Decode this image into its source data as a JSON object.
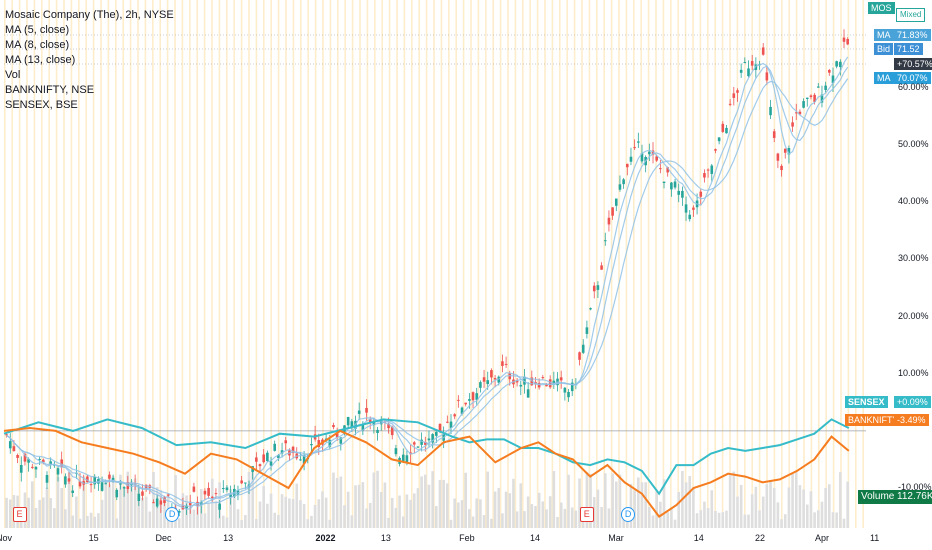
{
  "legend": {
    "symbol": "Mosaic Company (The), 2h, NYSE",
    "ma1": "MA (5, close)",
    "ma2": "MA (8, close)",
    "ma3": "MA (13, close)",
    "vol": "Vol",
    "comp1": "BANKNIFTY, NSE",
    "comp2": "SENSEX, BSE"
  },
  "scale_tags": {
    "symbol_badge": "MOS",
    "mode": "Mixed",
    "ma_label": "MA",
    "ma_a_value": "71.83%",
    "bid_label": "Bid",
    "bid_value": "71.52",
    "last_change": "+70.57%",
    "ma_c_value": "70.07%",
    "sensex_label": "SENSEX",
    "sensex_value": "+0.09%",
    "banknifty_label": "BANKNIFTY",
    "banknifty_value": "-3.49%",
    "volume_label": "Volume",
    "volume_value": "112.76K"
  },
  "colors": {
    "up": "#26a69a",
    "down": "#ef5350",
    "ma": "#90c2e6",
    "sensex": "#36bcc8",
    "banknifty": "#f57c1f",
    "session_band": "#fde5b4",
    "volume": "#dedede"
  },
  "chart_data": {
    "type": "line",
    "y_axis_ticks": [
      "60.00%",
      "50.00%",
      "40.00%",
      "30.00%",
      "20.00%",
      "10.00%",
      "-10.00%"
    ],
    "x_axis_ticks": [
      {
        "label": "Nov",
        "bold": false
      },
      {
        "label": "15",
        "bold": false
      },
      {
        "label": "Dec",
        "bold": false
      },
      {
        "label": "13",
        "bold": false
      },
      {
        "label": "2022",
        "bold": true
      },
      {
        "label": "13",
        "bold": false
      },
      {
        "label": "Feb",
        "bold": false
      },
      {
        "label": "14",
        "bold": false
      },
      {
        "label": "Mar",
        "bold": false
      },
      {
        "label": "14",
        "bold": false
      },
      {
        "label": "22",
        "bold": false
      },
      {
        "label": "Apr",
        "bold": false
      },
      {
        "label": "11",
        "bold": false
      }
    ],
    "ylim": [
      -17,
      74
    ],
    "x_range": [
      0,
      100
    ],
    "tick_x": [
      0,
      10.4,
      18.5,
      26,
      37.3,
      44.3,
      53.7,
      61.6,
      71,
      80.6,
      87.7,
      94.9,
      101
    ],
    "events": [
      {
        "x": 1.8,
        "kind": "E"
      },
      {
        "x": 19.5,
        "kind": "D"
      },
      {
        "x": 67.6,
        "kind": "E"
      },
      {
        "x": 72.4,
        "kind": "D"
      }
    ],
    "series": [
      {
        "name": "MOS",
        "x": [
          0,
          2,
          4,
          6,
          8,
          10,
          12,
          14,
          16,
          18,
          20,
          22,
          24,
          26,
          28,
          30,
          32,
          34,
          36,
          38,
          40,
          42,
          44,
          46,
          48,
          50,
          52,
          54,
          56,
          58,
          60,
          62,
          64,
          66,
          68,
          70,
          72,
          74,
          76,
          78,
          80,
          82,
          84,
          86,
          88,
          90,
          92,
          94,
          96,
          98
        ],
        "values": [
          0,
          -5,
          -6,
          -7,
          -9,
          -8,
          -8,
          -10,
          -11,
          -12,
          -13,
          -12,
          -12,
          -11,
          -9,
          -5,
          -3,
          -4,
          -3,
          -1,
          1,
          3,
          1,
          -4,
          -2,
          -2,
          3,
          6,
          8,
          11,
          8,
          9,
          8,
          7,
          20,
          34,
          46,
          50,
          46,
          42,
          38,
          46,
          55,
          64,
          66,
          44,
          56,
          58,
          63,
          68
        ]
      },
      {
        "name": "SENSEX",
        "x": [
          0,
          4,
          8,
          12,
          16,
          20,
          24,
          28,
          32,
          36,
          40,
          44,
          48,
          52,
          54,
          56,
          58,
          60,
          62,
          64,
          66,
          68,
          70,
          72,
          74,
          76,
          78,
          80,
          82,
          84,
          86,
          88,
          90,
          92,
          94,
          96,
          98
        ],
        "values": [
          -0.5,
          1.5,
          0,
          2,
          0.5,
          -2.5,
          -2,
          -3,
          -0.5,
          -1,
          0.5,
          2,
          1.5,
          -1,
          -2,
          -1.5,
          -1.5,
          -3,
          -3,
          -4,
          -5.5,
          -6,
          -5,
          -5.5,
          -7,
          -11,
          -6,
          -6,
          -4,
          -3,
          -3.5,
          -3,
          -2.5,
          -1.5,
          -0.5,
          2,
          0.5
        ]
      },
      {
        "name": "BANKNIFTY",
        "x": [
          0,
          3,
          6,
          9,
          12,
          15,
          18,
          21,
          24,
          27,
          30,
          33,
          36,
          39,
          42,
          45,
          48,
          51,
          54,
          57,
          60,
          62,
          64,
          66,
          68,
          70,
          72,
          74,
          76,
          78,
          80,
          82,
          84,
          86,
          88,
          90,
          92,
          94,
          96,
          98
        ],
        "values": [
          0,
          0.5,
          0,
          -2,
          -3,
          -4,
          -5.5,
          -7.5,
          -4,
          -5,
          -7.5,
          -10,
          -3,
          0,
          -2,
          -5,
          -6,
          -2,
          -1,
          -5.5,
          -3,
          -2,
          -4,
          -5,
          -8,
          -6,
          -9,
          -11,
          -15,
          -13,
          -10,
          -9,
          -7.5,
          -8,
          -9,
          -8.5,
          -7,
          -5,
          -1,
          -3.5
        ]
      }
    ]
  }
}
